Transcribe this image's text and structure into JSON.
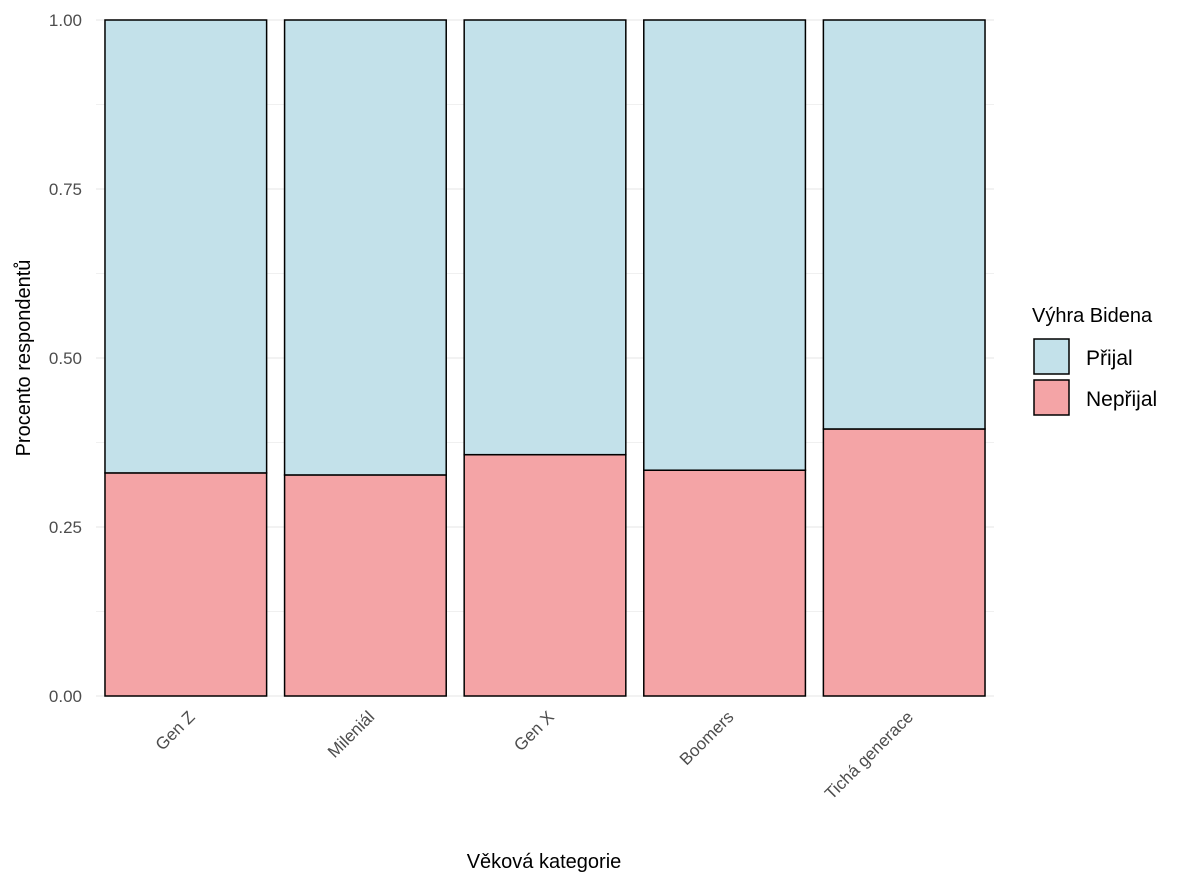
{
  "chart_data": {
    "type": "bar",
    "stacked": true,
    "categories": [
      "Gen Z",
      "Mileniál",
      "Gen X",
      "Boomers",
      "Tichá generace"
    ],
    "series": [
      {
        "name": "Nepřijal",
        "values": [
          0.33,
          0.327,
          0.357,
          0.334,
          0.395
        ],
        "color": "#f4a4a6"
      },
      {
        "name": "Přijal",
        "values": [
          0.67,
          0.673,
          0.643,
          0.666,
          0.605
        ],
        "color": "#c3e1ea"
      }
    ],
    "xlabel": "Věková kategorie",
    "ylabel": "Procento respondentů",
    "ylim": [
      0,
      1
    ],
    "yticks": [
      "0.00",
      "0.25",
      "0.50",
      "0.75",
      "1.00"
    ],
    "grid": true,
    "legend": {
      "title": "Výhra Bidena",
      "position": "right",
      "entries": [
        "Přijal",
        "Nepřijal"
      ]
    }
  }
}
